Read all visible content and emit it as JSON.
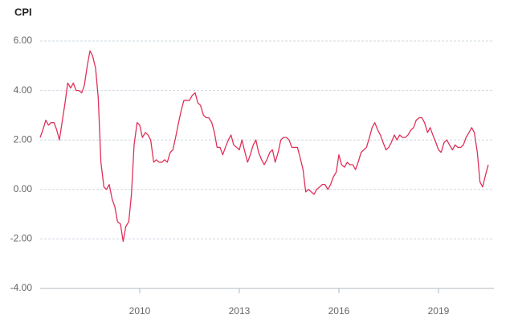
{
  "chart_data": {
    "type": "line",
    "title": "CPI",
    "x": [
      2007.0,
      2007.08,
      2007.17,
      2007.25,
      2007.33,
      2007.42,
      2007.5,
      2007.58,
      2007.67,
      2007.75,
      2007.83,
      2007.92,
      2008.0,
      2008.08,
      2008.17,
      2008.25,
      2008.33,
      2008.42,
      2008.5,
      2008.58,
      2008.67,
      2008.75,
      2008.83,
      2008.92,
      2009.0,
      2009.08,
      2009.17,
      2009.25,
      2009.33,
      2009.42,
      2009.5,
      2009.58,
      2009.67,
      2009.75,
      2009.83,
      2009.92,
      2010.0,
      2010.08,
      2010.17,
      2010.25,
      2010.33,
      2010.42,
      2010.5,
      2010.58,
      2010.67,
      2010.75,
      2010.83,
      2010.92,
      2011.0,
      2011.08,
      2011.17,
      2011.25,
      2011.33,
      2011.42,
      2011.5,
      2011.58,
      2011.67,
      2011.75,
      2011.83,
      2011.92,
      2012.0,
      2012.08,
      2012.17,
      2012.25,
      2012.33,
      2012.42,
      2012.5,
      2012.58,
      2012.67,
      2012.75,
      2012.83,
      2012.92,
      2013.0,
      2013.08,
      2013.17,
      2013.25,
      2013.33,
      2013.42,
      2013.5,
      2013.58,
      2013.67,
      2013.75,
      2013.83,
      2013.92,
      2014.0,
      2014.08,
      2014.17,
      2014.25,
      2014.33,
      2014.42,
      2014.5,
      2014.58,
      2014.67,
      2014.75,
      2014.83,
      2014.92,
      2015.0,
      2015.08,
      2015.17,
      2015.25,
      2015.33,
      2015.42,
      2015.5,
      2015.58,
      2015.67,
      2015.75,
      2015.83,
      2015.92,
      2016.0,
      2016.08,
      2016.17,
      2016.25,
      2016.33,
      2016.42,
      2016.5,
      2016.58,
      2016.67,
      2016.75,
      2016.83,
      2016.92,
      2017.0,
      2017.08,
      2017.17,
      2017.25,
      2017.33,
      2017.42,
      2017.5,
      2017.58,
      2017.67,
      2017.75,
      2017.83,
      2017.92,
      2018.0,
      2018.08,
      2018.17,
      2018.25,
      2018.33,
      2018.42,
      2018.5,
      2018.58,
      2018.67,
      2018.75,
      2018.83,
      2018.92,
      2019.0,
      2019.08,
      2019.17,
      2019.25,
      2019.33,
      2019.42,
      2019.5,
      2019.58,
      2019.67,
      2019.75,
      2019.83,
      2019.92,
      2020.0,
      2020.08,
      2020.17,
      2020.25,
      2020.33,
      2020.42,
      2020.5
    ],
    "series": [
      {
        "color": "#e0305a",
        "values": [
          2.1,
          2.4,
          2.8,
          2.6,
          2.7,
          2.7,
          2.4,
          2.0,
          2.8,
          3.5,
          4.3,
          4.1,
          4.3,
          4.0,
          4.0,
          3.9,
          4.2,
          5.0,
          5.6,
          5.4,
          4.9,
          3.7,
          1.1,
          0.1,
          0.0,
          0.2,
          -0.4,
          -0.7,
          -1.3,
          -1.4,
          -2.1,
          -1.5,
          -1.3,
          -0.2,
          1.8,
          2.7,
          2.6,
          2.1,
          2.3,
          2.2,
          2.0,
          1.1,
          1.2,
          1.1,
          1.1,
          1.2,
          1.1,
          1.5,
          1.6,
          2.1,
          2.7,
          3.2,
          3.6,
          3.6,
          3.6,
          3.8,
          3.9,
          3.5,
          3.4,
          3.0,
          2.9,
          2.9,
          2.7,
          2.3,
          1.7,
          1.7,
          1.4,
          1.7,
          2.0,
          2.2,
          1.8,
          1.7,
          1.6,
          2.0,
          1.5,
          1.1,
          1.4,
          1.8,
          2.0,
          1.5,
          1.2,
          1.0,
          1.2,
          1.5,
          1.6,
          1.1,
          1.5,
          2.0,
          2.1,
          2.1,
          2.0,
          1.7,
          1.7,
          1.7,
          1.3,
          0.8,
          -0.1,
          0.0,
          -0.1,
          -0.2,
          0.0,
          0.1,
          0.2,
          0.2,
          0.0,
          0.2,
          0.5,
          0.7,
          1.4,
          1.0,
          0.9,
          1.1,
          1.0,
          1.0,
          0.8,
          1.1,
          1.5,
          1.6,
          1.7,
          2.1,
          2.5,
          2.7,
          2.4,
          2.2,
          1.9,
          1.6,
          1.7,
          1.9,
          2.2,
          2.0,
          2.2,
          2.1,
          2.1,
          2.2,
          2.4,
          2.5,
          2.8,
          2.9,
          2.9,
          2.7,
          2.3,
          2.5,
          2.2,
          1.9,
          1.6,
          1.5,
          1.9,
          2.0,
          1.8,
          1.6,
          1.8,
          1.7,
          1.7,
          1.8,
          2.1,
          2.3,
          2.5,
          2.3,
          1.5,
          0.3,
          0.1,
          0.6,
          1.0
        ]
      }
    ],
    "xlim": [
      2007,
      2020.67
    ],
    "xticks": [
      2010,
      2013,
      2016,
      2019
    ],
    "ylim": [
      -4,
      6
    ],
    "yticks": [
      {
        "value": -4,
        "label": "-4.00"
      },
      {
        "value": -2,
        "label": "-2.00"
      },
      {
        "value": 0,
        "label": "0.00"
      },
      {
        "value": 2,
        "label": "2.00"
      },
      {
        "value": 4,
        "label": "4.00"
      },
      {
        "value": 6,
        "label": "6.00"
      }
    ],
    "grid": true
  }
}
